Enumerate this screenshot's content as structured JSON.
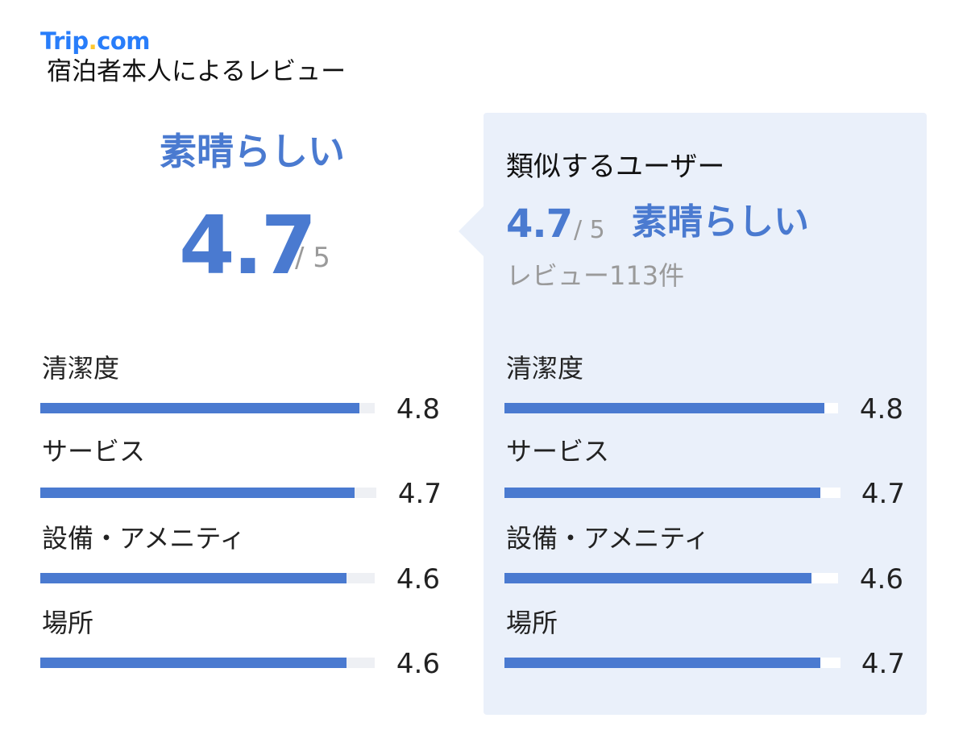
{
  "brand": {
    "logo_main": "Trip",
    "logo_dot": ".",
    "logo_tail": "com",
    "subtitle": "宿泊者本人によるレビュー"
  },
  "summary": {
    "rating_label": "素晴らしい",
    "score": "4.7",
    "out_of": "/ 5"
  },
  "similar_users": {
    "title": "類似するユーザー",
    "score": "4.7",
    "out_of": "/ 5",
    "rating_label": "素晴らしい",
    "review_count": "レビュー113件"
  },
  "categories_left": [
    {
      "label": "清潔度",
      "value": "4.8",
      "fraction": 0.955
    },
    {
      "label": "サービス",
      "value": "4.7",
      "fraction": 0.935
    },
    {
      "label": "設備・アメニティ",
      "value": "4.6",
      "fraction": 0.915
    },
    {
      "label": "場所",
      "value": "4.6",
      "fraction": 0.915
    }
  ],
  "categories_right": [
    {
      "label": "清潔度",
      "value": "4.8",
      "fraction": 0.96
    },
    {
      "label": "サービス",
      "value": "4.7",
      "fraction": 0.94
    },
    {
      "label": "設備・アメニティ",
      "value": "4.6",
      "fraction": 0.92
    },
    {
      "label": "場所",
      "value": "4.7",
      "fraction": 0.94
    }
  ],
  "colors": {
    "accent": "#4a7ad0",
    "brand": "#287dfa",
    "brand_dot": "#ffc72c",
    "panel_bg": "#eaf0fa"
  }
}
